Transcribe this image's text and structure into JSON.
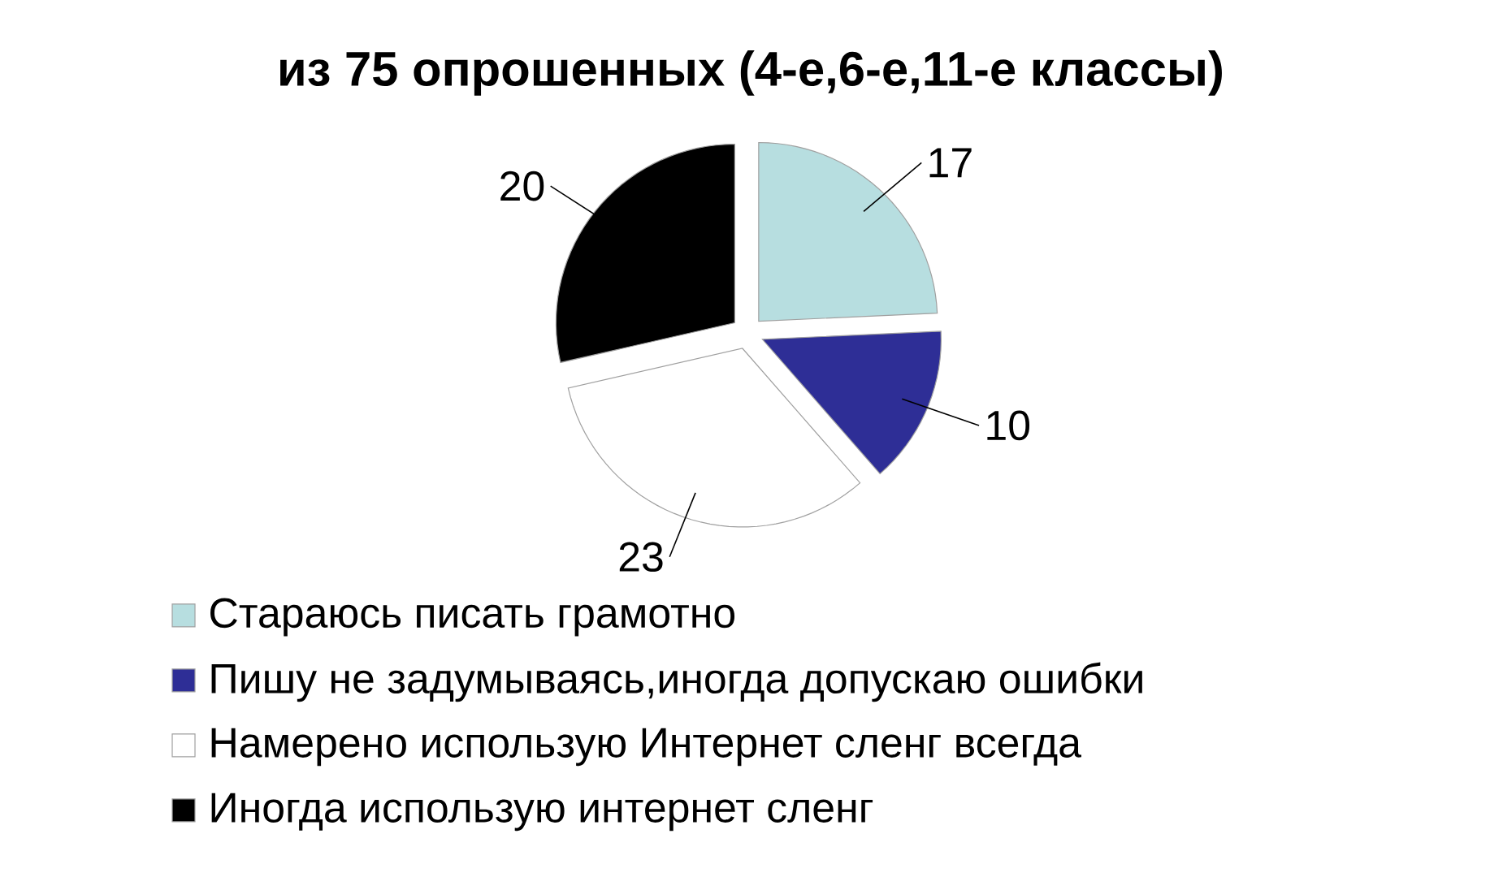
{
  "chart_data": {
    "type": "pie",
    "title": "из 75 опрошенных (4-е,6-е,11-е классы)",
    "categories": [
      "Стараюсь писать грамотно",
      "Пишу не задумываясь,иногда допускаю ошибки",
      "Намерено использую Интернет сленг всегда",
      "Иногда использую интернет сленг"
    ],
    "values": [
      17,
      10,
      23,
      20
    ],
    "colors": [
      "#b7dee0",
      "#2e2e96",
      "#ffffff",
      "#000000"
    ],
    "data_labels": true,
    "legend": "bottom"
  }
}
